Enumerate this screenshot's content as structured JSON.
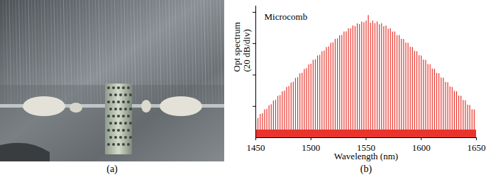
{
  "chart_data": {
    "type": "stem",
    "annotation": "Microcomb",
    "xlabel": "Wavelength (nm)",
    "ylabel": "Opt spectrum\n(20 dB/div)",
    "panel_label": "(b)",
    "color": "#e8342c",
    "noise_floor": 5,
    "x": [
      1450,
      1452,
      1454,
      1456,
      1458,
      1460,
      1462,
      1464,
      1466,
      1468,
      1470,
      1472,
      1474,
      1476,
      1478,
      1480,
      1482,
      1484,
      1486,
      1488,
      1490,
      1492,
      1494,
      1496,
      1498,
      1500,
      1502,
      1504,
      1506,
      1508,
      1510,
      1512,
      1514,
      1516,
      1518,
      1520,
      1522,
      1524,
      1526,
      1528,
      1530,
      1532,
      1534,
      1536,
      1538,
      1540,
      1542,
      1544,
      1546,
      1548,
      1550,
      1552,
      1554,
      1556,
      1558,
      1560,
      1562,
      1564,
      1566,
      1568,
      1570,
      1572,
      1574,
      1576,
      1578,
      1580,
      1582,
      1584,
      1586,
      1588,
      1590,
      1592,
      1594,
      1596,
      1598,
      1600,
      1602,
      1604,
      1606,
      1608,
      1610,
      1612,
      1614,
      1616,
      1618,
      1620,
      1622,
      1624,
      1626,
      1628,
      1630,
      1632,
      1634,
      1636,
      1638,
      1640,
      1642,
      1644,
      1646,
      1648,
      1650
    ],
    "values": [
      11.5,
      12.4,
      14.9,
      15.3,
      17.8,
      18.2,
      20.6,
      21.1,
      23.5,
      24.0,
      26.4,
      27.0,
      29.3,
      29.8,
      32.2,
      32.7,
      35.0,
      35.5,
      37.9,
      38.4,
      40.9,
      41.2,
      43.7,
      44.1,
      46.6,
      47.0,
      49.4,
      49.8,
      52.2,
      52.6,
      54.9,
      55.3,
      57.6,
      58.0,
      60.3,
      60.6,
      62.8,
      63.1,
      65.2,
      65.4,
      67.5,
      67.6,
      69.5,
      69.5,
      71.3,
      71.0,
      72.7,
      72.3,
      73.8,
      73.4,
      74.5,
      78.0,
      73.2,
      74.4,
      72.9,
      73.9,
      72.1,
      72.8,
      70.9,
      71.3,
      69.3,
      69.6,
      67.4,
      67.6,
      65.2,
      65.3,
      62.9,
      62.8,
      60.4,
      60.3,
      57.8,
      57.7,
      55.1,
      54.9,
      52.4,
      52.2,
      49.6,
      49.4,
      46.8,
      46.6,
      43.9,
      43.7,
      41.1,
      40.9,
      38.2,
      38.0,
      35.3,
      35.1,
      32.5,
      32.2,
      29.6,
      29.4,
      26.7,
      26.5,
      23.8,
      23.6,
      20.9,
      20.7,
      18.0,
      17.8,
      15.1
    ],
    "xlim": [
      1450,
      1650
    ],
    "xticks": [
      1450,
      1500,
      1550,
      1600,
      1650
    ],
    "ylim": [
      0,
      84
    ],
    "yticks": [
      20,
      40,
      60,
      80
    ],
    "grid": false,
    "tick_labels": "x"
  },
  "photo": {
    "label": "(a)"
  }
}
